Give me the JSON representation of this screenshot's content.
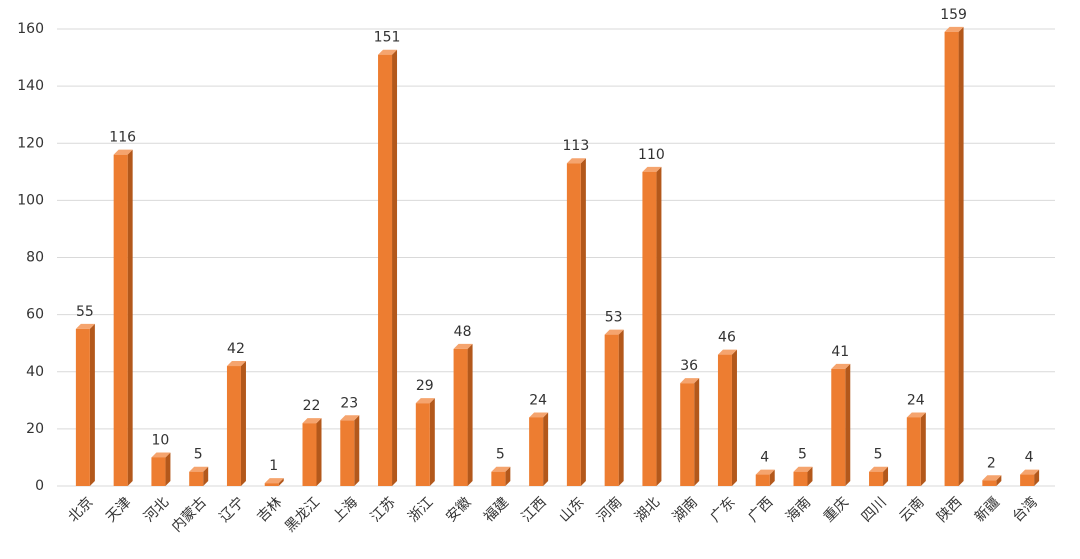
{
  "chart_data": {
    "type": "bar",
    "categories": [
      "北京",
      "天津",
      "河北",
      "内蒙古",
      "辽宁",
      "吉林",
      "黑龙江",
      "上海",
      "江苏",
      "浙江",
      "安徽",
      "福建",
      "江西",
      "山东",
      "河南",
      "湖北",
      "湖南",
      "广东",
      "广西",
      "海南",
      "重庆",
      "四川",
      "云南",
      "陕西",
      "新疆",
      "台湾"
    ],
    "values": [
      55,
      116,
      10,
      5,
      42,
      1,
      22,
      23,
      151,
      29,
      48,
      5,
      24,
      113,
      53,
      110,
      36,
      46,
      4,
      5,
      41,
      5,
      24,
      159,
      2,
      4
    ],
    "color": "#ed7d31",
    "ylim": [
      0,
      160
    ],
    "yticks": [
      0,
      20,
      40,
      60,
      80,
      100,
      120,
      140,
      160
    ],
    "grid": true
  }
}
